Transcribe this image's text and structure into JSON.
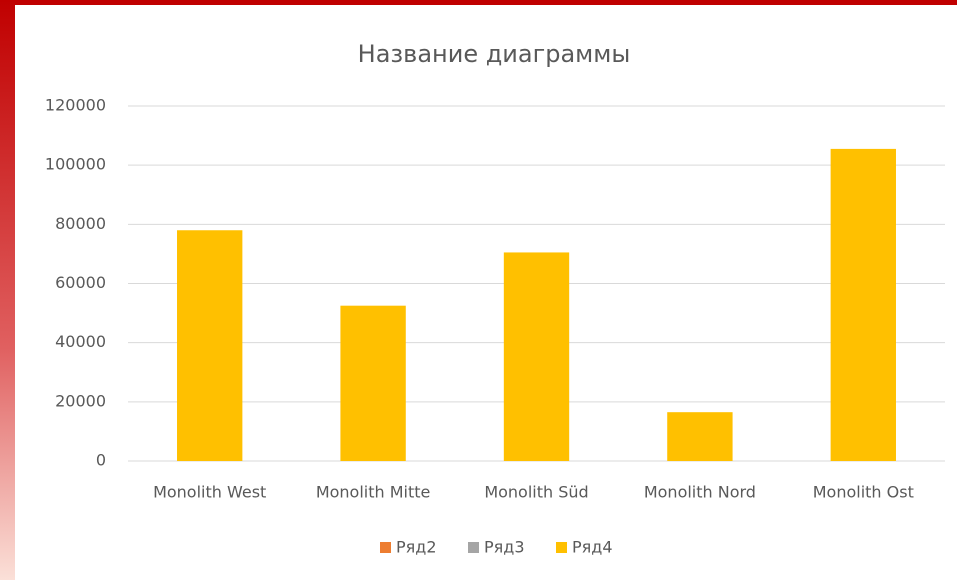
{
  "chart_data": {
    "type": "bar",
    "title": "Название диаграммы",
    "categories": [
      "Monolith West",
      "Monolith Mitte",
      "Monolith Süd",
      "Monolith Nord",
      "Monolith Ost"
    ],
    "series": [
      {
        "name": "Ряд2",
        "color": "#ed7d31",
        "values": [
          null,
          null,
          null,
          null,
          null
        ]
      },
      {
        "name": "Ряд3",
        "color": "#a5a5a5",
        "values": [
          null,
          null,
          null,
          null,
          null
        ]
      },
      {
        "name": "Ряд4",
        "color": "#ffc000",
        "values": [
          78000,
          52500,
          70500,
          16500,
          105500
        ]
      }
    ],
    "ylim": [
      0,
      120000
    ],
    "yticks": [
      0,
      20000,
      40000,
      60000,
      80000,
      100000,
      120000
    ],
    "grid": true,
    "legend": "bottom"
  }
}
